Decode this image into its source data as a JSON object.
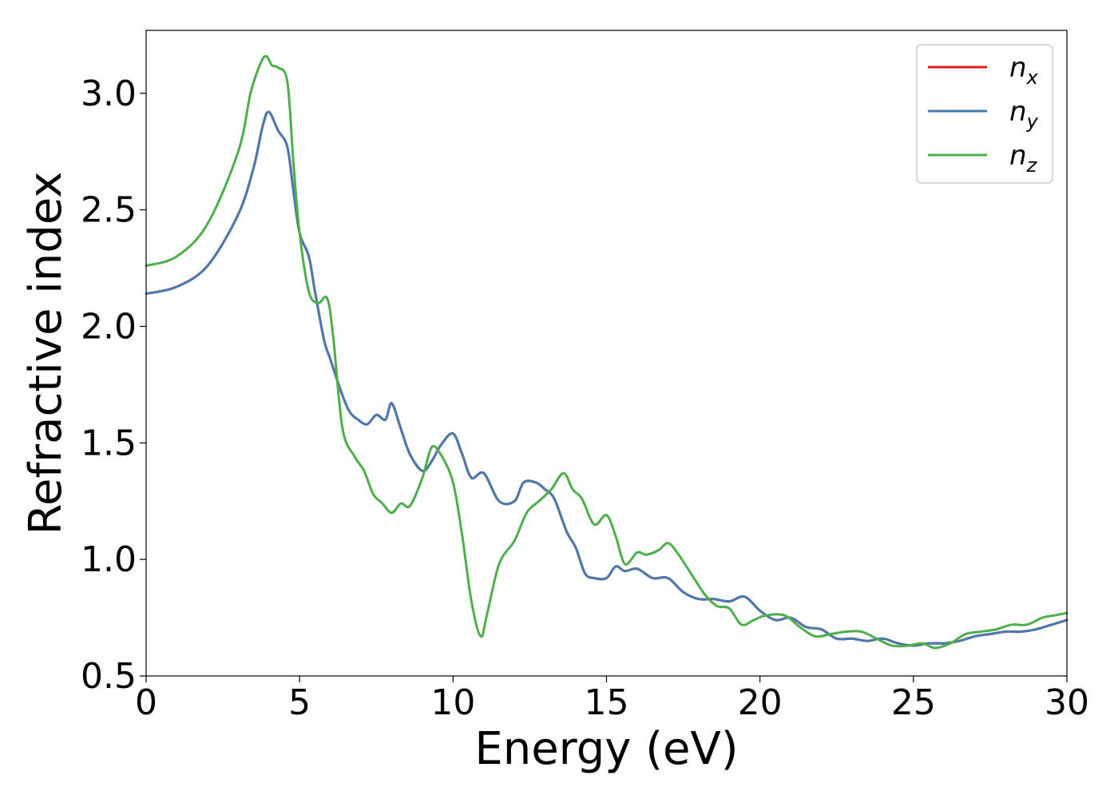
{
  "chart_data": {
    "type": "line",
    "xlabel": "Energy (eV)",
    "ylabel": "Refractive index",
    "xlim": [
      0,
      30
    ],
    "ylim": [
      0.5,
      3.27
    ],
    "xticks": [
      "0",
      "5",
      "10",
      "15",
      "20",
      "25",
      "30"
    ],
    "yticks": [
      "0.5",
      "1.0",
      "1.5",
      "2.0",
      "2.5",
      "3.0"
    ],
    "grid": false,
    "legend_position": "top-right",
    "series": [
      {
        "name": "n_x",
        "label_base": "n",
        "label_sub": "x",
        "color": "#e41a1c",
        "x": [
          0,
          1,
          2,
          3,
          3.5,
          3.8,
          4.0,
          4.3,
          4.6,
          4.8,
          5.0,
          5.3,
          5.5,
          5.8,
          6.0,
          6.3,
          6.6,
          6.9,
          7.2,
          7.5,
          7.8,
          8.0,
          8.3,
          8.6,
          9.0,
          9.3,
          9.6,
          10.0,
          10.3,
          10.6,
          11.0,
          11.5,
          12.0,
          12.3,
          12.7,
          13.0,
          13.3,
          13.7,
          14.0,
          14.3,
          14.6,
          15.0,
          15.3,
          15.6,
          16.0,
          16.5,
          17.0,
          17.5,
          18.0,
          18.5,
          19.0,
          19.5,
          20.0,
          20.5,
          21.0,
          21.5,
          22.0,
          22.5,
          23.0,
          23.5,
          24.0,
          24.5,
          25.0,
          25.5,
          26.0,
          26.5,
          27.0,
          27.5,
          28.0,
          28.5,
          29.0,
          29.5,
          30.0
        ],
        "y": [
          2.14,
          2.17,
          2.26,
          2.48,
          2.68,
          2.86,
          2.92,
          2.84,
          2.77,
          2.58,
          2.4,
          2.3,
          2.15,
          1.94,
          1.86,
          1.74,
          1.64,
          1.6,
          1.58,
          1.62,
          1.6,
          1.67,
          1.56,
          1.45,
          1.38,
          1.42,
          1.49,
          1.54,
          1.45,
          1.35,
          1.37,
          1.25,
          1.25,
          1.33,
          1.33,
          1.3,
          1.26,
          1.12,
          1.05,
          0.94,
          0.92,
          0.92,
          0.97,
          0.95,
          0.96,
          0.92,
          0.92,
          0.86,
          0.83,
          0.83,
          0.82,
          0.84,
          0.78,
          0.74,
          0.75,
          0.71,
          0.7,
          0.66,
          0.66,
          0.65,
          0.66,
          0.64,
          0.63,
          0.64,
          0.64,
          0.65,
          0.67,
          0.68,
          0.69,
          0.69,
          0.7,
          0.72,
          0.74
        ]
      },
      {
        "name": "n_y",
        "label_base": "n",
        "label_sub": "y",
        "color": "#4a79ad",
        "x": [
          0,
          1,
          2,
          3,
          3.5,
          3.8,
          4.0,
          4.3,
          4.6,
          4.8,
          5.0,
          5.3,
          5.5,
          5.8,
          6.0,
          6.3,
          6.6,
          6.9,
          7.2,
          7.5,
          7.8,
          8.0,
          8.3,
          8.6,
          9.0,
          9.3,
          9.6,
          10.0,
          10.3,
          10.6,
          11.0,
          11.5,
          12.0,
          12.3,
          12.7,
          13.0,
          13.3,
          13.7,
          14.0,
          14.3,
          14.6,
          15.0,
          15.3,
          15.6,
          16.0,
          16.5,
          17.0,
          17.5,
          18.0,
          18.5,
          19.0,
          19.5,
          20.0,
          20.5,
          21.0,
          21.5,
          22.0,
          22.5,
          23.0,
          23.5,
          24.0,
          24.5,
          25.0,
          25.5,
          26.0,
          26.5,
          27.0,
          27.5,
          28.0,
          28.5,
          29.0,
          29.5,
          30.0
        ],
        "y": [
          2.14,
          2.17,
          2.26,
          2.48,
          2.68,
          2.86,
          2.92,
          2.84,
          2.77,
          2.58,
          2.4,
          2.3,
          2.15,
          1.94,
          1.86,
          1.74,
          1.64,
          1.6,
          1.58,
          1.62,
          1.6,
          1.67,
          1.56,
          1.45,
          1.38,
          1.42,
          1.49,
          1.54,
          1.45,
          1.35,
          1.37,
          1.25,
          1.25,
          1.33,
          1.33,
          1.3,
          1.26,
          1.12,
          1.05,
          0.94,
          0.92,
          0.92,
          0.97,
          0.95,
          0.96,
          0.92,
          0.92,
          0.86,
          0.83,
          0.83,
          0.82,
          0.84,
          0.78,
          0.74,
          0.75,
          0.71,
          0.7,
          0.66,
          0.66,
          0.65,
          0.66,
          0.64,
          0.63,
          0.64,
          0.64,
          0.65,
          0.67,
          0.68,
          0.69,
          0.69,
          0.7,
          0.72,
          0.74
        ]
      },
      {
        "name": "n_z",
        "label_base": "n",
        "label_sub": "z",
        "color": "#4daf4a",
        "x": [
          0,
          1,
          2,
          3,
          3.4,
          3.7,
          3.9,
          4.1,
          4.3,
          4.6,
          4.8,
          5.0,
          5.3,
          5.6,
          5.9,
          6.1,
          6.4,
          6.8,
          7.1,
          7.4,
          7.7,
          8.0,
          8.3,
          8.6,
          9.0,
          9.3,
          9.6,
          10.0,
          10.3,
          10.6,
          10.9,
          11.1,
          11.5,
          12.0,
          12.4,
          12.8,
          13.2,
          13.6,
          13.9,
          14.2,
          14.6,
          15.0,
          15.3,
          15.6,
          16.0,
          16.3,
          16.7,
          17.0,
          17.3,
          17.8,
          18.2,
          18.6,
          19.0,
          19.4,
          19.8,
          20.2,
          20.8,
          21.3,
          21.8,
          22.3,
          22.8,
          23.3,
          23.8,
          24.3,
          24.8,
          25.3,
          25.7,
          26.2,
          26.7,
          27.2,
          27.7,
          28.2,
          28.7,
          29.2,
          29.6,
          30.0
        ],
        "y": [
          2.26,
          2.3,
          2.44,
          2.75,
          3.0,
          3.12,
          3.16,
          3.12,
          3.11,
          3.05,
          2.7,
          2.4,
          2.15,
          2.1,
          2.12,
          1.95,
          1.56,
          1.44,
          1.38,
          1.28,
          1.24,
          1.2,
          1.24,
          1.23,
          1.35,
          1.48,
          1.45,
          1.33,
          1.1,
          0.82,
          0.67,
          0.76,
          0.98,
          1.08,
          1.2,
          1.25,
          1.3,
          1.37,
          1.3,
          1.26,
          1.15,
          1.19,
          1.1,
          0.98,
          1.03,
          1.02,
          1.04,
          1.07,
          1.03,
          0.93,
          0.85,
          0.8,
          0.79,
          0.72,
          0.74,
          0.76,
          0.76,
          0.71,
          0.67,
          0.68,
          0.69,
          0.69,
          0.66,
          0.63,
          0.63,
          0.64,
          0.62,
          0.64,
          0.68,
          0.69,
          0.7,
          0.72,
          0.72,
          0.75,
          0.76,
          0.77
        ]
      }
    ]
  }
}
